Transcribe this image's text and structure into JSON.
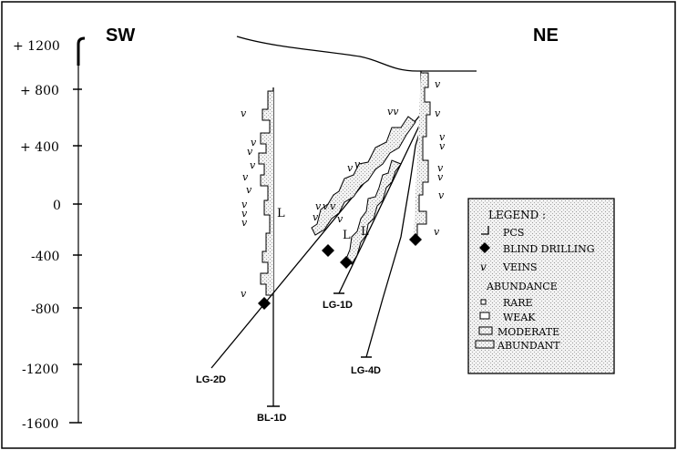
{
  "directions": {
    "left": "SW",
    "right": "NE"
  },
  "depth_scale": {
    "top_label": "+ 1200",
    "ticks": [
      "+ 800",
      "+ 400",
      "0",
      "-400",
      "-800",
      "-1200",
      "-1600"
    ]
  },
  "drill_holes": {
    "lg2d": "LG-2D",
    "bl1d": "BL-1D",
    "lg1d": "LG-1D",
    "lg4d": "LG-4D"
  },
  "legend": {
    "title": "LEGEND :",
    "pcs": "PCS",
    "blind": "BLIND DRILLING",
    "veins": "VEINS",
    "abundance": "ABUNDANCE",
    "rare": "RARE",
    "weak": "WEAK",
    "moderate": "MODERATE",
    "abundant": "ABUNDANT"
  },
  "glyphs": {
    "vein_mark": "v",
    "vein_pair": "vv",
    "pcs_mark": "L"
  },
  "colors": {
    "ink": "#000000",
    "legend_fill": "#e6e6e6",
    "paper": "#ffffff"
  }
}
